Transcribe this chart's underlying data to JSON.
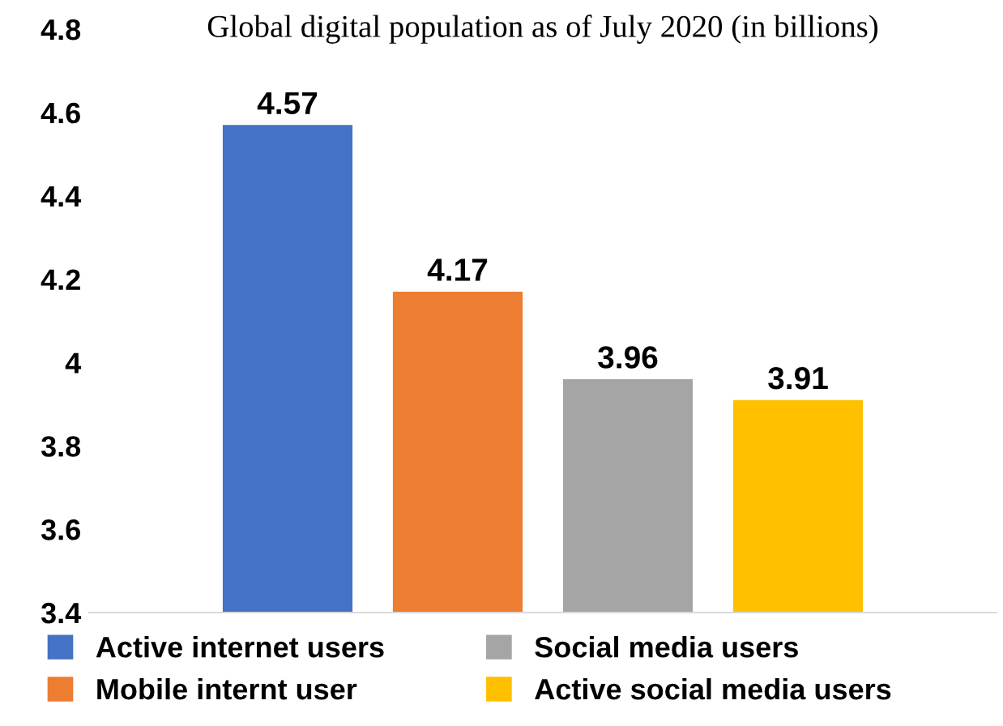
{
  "chart_data": {
    "type": "bar",
    "title": "Global digital population as of July 2020 (in billions)",
    "categories": [
      null
    ],
    "series": [
      {
        "name": "Active internet users",
        "color": "#4472c4",
        "values": [
          4.57
        ]
      },
      {
        "name": "Mobile internt user",
        "color": "#ed7d31",
        "values": [
          4.17
        ]
      },
      {
        "name": "Social media users",
        "color": "#a5a5a5",
        "values": [
          3.96
        ]
      },
      {
        "name": "Active social media users",
        "color": "#ffc000",
        "values": [
          3.91
        ]
      }
    ],
    "ylim": [
      3.4,
      4.8
    ],
    "yticks": [
      3.4,
      3.6,
      3.8,
      4,
      4.2,
      4.4,
      4.6,
      4.8
    ],
    "grid": false,
    "legend": "bottom",
    "data_labels": true
  }
}
